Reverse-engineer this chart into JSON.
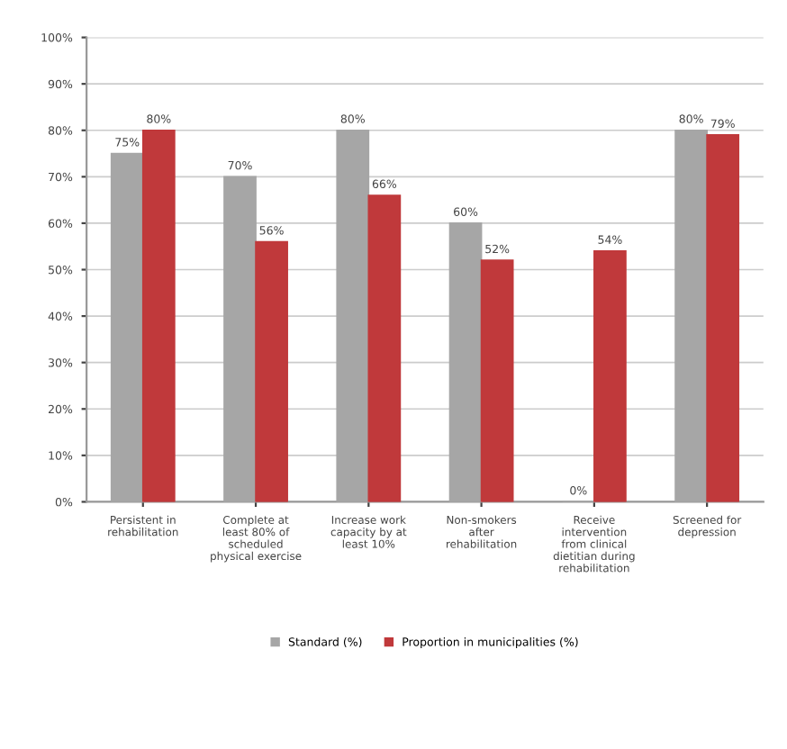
{
  "chart_data": {
    "type": "bar",
    "categories": [
      "Persistent in\nrehabilitation",
      "Complete at\nleast 80% of\nscheduled\nphysical exercise",
      "Increase work\ncapacity by at\nleast 10%",
      "Non-smokers\nafter\nrehabilitation",
      "Receive\nintervention\nfrom clinical\ndietitian during\nrehabilitation",
      "Screened for\ndepression"
    ],
    "series": [
      {
        "name": "Standard (%)",
        "color": "#a6a6a6",
        "values": [
          75,
          70,
          80,
          60,
          0,
          80
        ],
        "value_labels": [
          "75%",
          "70%",
          "80%",
          "60%",
          "0%",
          "80%"
        ]
      },
      {
        "name": "Proportion in municipalities (%)",
        "color": "#c0393b",
        "values": [
          80,
          56,
          66,
          52,
          54,
          79
        ],
        "value_labels": [
          "80%",
          "56%",
          "66%",
          "52%",
          "54%",
          "79%"
        ]
      }
    ],
    "ylim": [
      0,
      100
    ],
    "yticks": [
      {
        "value": 0,
        "label": "0%"
      },
      {
        "value": 10,
        "label": "10%"
      },
      {
        "value": 20,
        "label": "20%"
      },
      {
        "value": 30,
        "label": "30%"
      },
      {
        "value": 40,
        "label": "40%"
      },
      {
        "value": 50,
        "label": "50%"
      },
      {
        "value": 60,
        "label": "60%"
      },
      {
        "value": 70,
        "label": "70%"
      },
      {
        "value": 80,
        "label": "80%"
      },
      {
        "value": 90,
        "label": "90%"
      },
      {
        "value": 100,
        "label": "100%"
      }
    ],
    "grid": "y",
    "legend": "bottom"
  }
}
